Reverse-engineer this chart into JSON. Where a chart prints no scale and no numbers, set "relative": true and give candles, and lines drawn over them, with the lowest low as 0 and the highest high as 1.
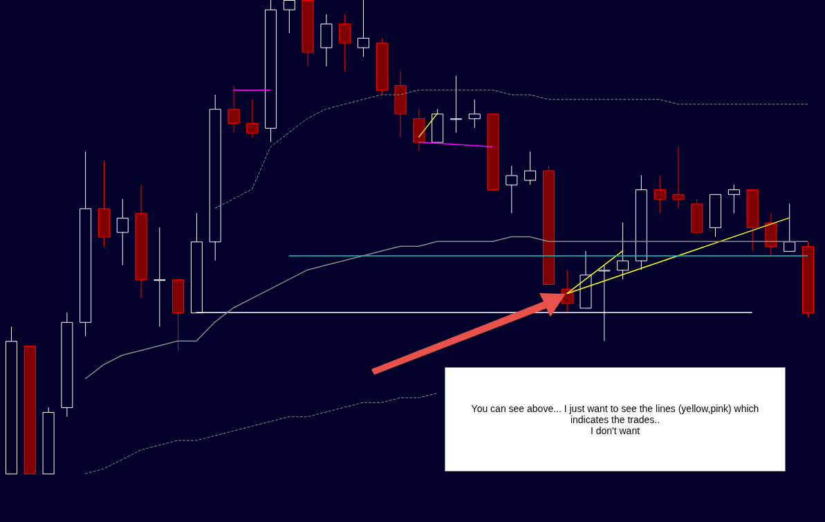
{
  "chart_data": {
    "type": "candlestick",
    "relative": true,
    "categories": [
      null,
      null,
      null,
      null,
      null,
      null,
      null,
      null,
      null,
      null,
      null,
      null,
      null,
      null,
      null,
      null,
      null,
      null,
      null,
      null,
      null,
      null,
      null,
      null,
      null,
      null,
      null,
      null,
      null,
      null,
      null,
      null,
      null,
      null,
      null,
      null,
      null,
      null,
      null,
      null,
      null,
      null,
      null,
      null
    ],
    "ohlc": [
      [
        0,
        0.31,
        0,
        0.28
      ],
      [
        0.27,
        0.27,
        0,
        0
      ],
      [
        0,
        0.14,
        0,
        0.13
      ],
      [
        0.14,
        0.34,
        0.12,
        0.32
      ],
      [
        0.32,
        0.68,
        0.29,
        0.56
      ],
      [
        0.56,
        0.66,
        0.48,
        0.5
      ],
      [
        0.51,
        0.58,
        0.44,
        0.54
      ],
      [
        0.55,
        0.61,
        0.37,
        0.41
      ],
      [
        0.41,
        0.52,
        0.31,
        0.41
      ],
      [
        0.41,
        0.41,
        0.26,
        0.34
      ],
      [
        0.34,
        0.55,
        0.34,
        0.49
      ],
      [
        0.49,
        0.8,
        0.45,
        0.77
      ],
      [
        0.77,
        0.82,
        0.72,
        0.74
      ],
      [
        0.74,
        0.79,
        0.71,
        0.72
      ],
      [
        0.73,
        1,
        0.7,
        0.98
      ],
      [
        0.98,
        1,
        0.93,
        1
      ],
      [
        1,
        1,
        0.86,
        0.89
      ],
      [
        0.9,
        0.97,
        0.86,
        0.95
      ],
      [
        0.95,
        0.97,
        0.85,
        0.91
      ],
      [
        0.9,
        1,
        0.88,
        0.92
      ],
      [
        0.91,
        0.92,
        0.8,
        0.81
      ],
      [
        0.82,
        0.85,
        0.71,
        0.76
      ],
      [
        0.75,
        0.77,
        0.68,
        0.7
      ],
      [
        0.7,
        0.77,
        0.7,
        0.76
      ],
      [
        0.75,
        0.84,
        0.72,
        0.75
      ],
      [
        0.75,
        0.79,
        0.73,
        0.76
      ],
      [
        0.76,
        0.76,
        0.6,
        0.6
      ],
      [
        0.61,
        0.65,
        0.55,
        0.63
      ],
      [
        0.62,
        0.68,
        0.61,
        0.64
      ],
      [
        0.64,
        0.65,
        0.4,
        0.4
      ],
      [
        0.39,
        0.43,
        0.34,
        0.36
      ],
      [
        0.35,
        0.47,
        0.35,
        0.42
      ],
      [
        0.43,
        0.44,
        0.28,
        0.43
      ],
      [
        0.43,
        0.53,
        0.41,
        0.45
      ],
      [
        0.45,
        0.63,
        0.43,
        0.6
      ],
      [
        0.6,
        0.63,
        0.55,
        0.58
      ],
      [
        0.59,
        0.69,
        0.56,
        0.58
      ],
      [
        0.57,
        0.58,
        0.51,
        0.51
      ],
      [
        0.52,
        0.59,
        0.5,
        0.59
      ],
      [
        0.59,
        0.61,
        0.55,
        0.6
      ],
      [
        0.6,
        0.6,
        0.47,
        0.52
      ],
      [
        0.53,
        0.55,
        0.46,
        0.48
      ],
      [
        0.47,
        0.57,
        0.47,
        0.49
      ],
      [
        0.48,
        0.49,
        0.33,
        0.34
      ]
    ],
    "series": [
      {
        "type": "line",
        "color": "#8c8c8c",
        "line_style": "dashed",
        "values": [
          null,
          null,
          null,
          null,
          null,
          null,
          null,
          null,
          null,
          null,
          null,
          0.56,
          0.58,
          0.6,
          0.69,
          0.72,
          0.75,
          0.77,
          0.78,
          0.79,
          0.8,
          0.8,
          0.81,
          0.81,
          0.81,
          0.81,
          0.81,
          0.8,
          0.8,
          0.79,
          0.79,
          0.79,
          0.79,
          0.79,
          0.79,
          0.79,
          0.78,
          0.78,
          0.78,
          0.78,
          0.78,
          0.78,
          0.78,
          0.78
        ]
      },
      {
        "type": "line",
        "color": "#8c8c8c",
        "line_style": "solid",
        "values": [
          null,
          null,
          null,
          null,
          0.2,
          0.23,
          0.25,
          0.26,
          0.27,
          0.28,
          0.28,
          0.32,
          0.35,
          0.37,
          0.39,
          0.41,
          0.43,
          0.44,
          0.45,
          0.46,
          0.47,
          0.48,
          0.48,
          0.49,
          0.49,
          0.49,
          0.49,
          0.5,
          0.5,
          0.49,
          0.49,
          0.49,
          0.49,
          0.49,
          0.49,
          0.49,
          0.49,
          0.49,
          0.49,
          0.49,
          0.49,
          0.49,
          0.49,
          0.49
        ]
      },
      {
        "type": "line",
        "color": "#8c8c8c",
        "line_style": "dashed",
        "values": [
          null,
          null,
          null,
          null,
          0,
          0.01,
          0.03,
          0.05,
          0.06,
          0.07,
          0.07,
          0.08,
          0.09,
          0.1,
          0.11,
          0.12,
          0.12,
          0.13,
          0.14,
          0.15,
          0.15,
          0.16,
          0.16,
          0.17,
          null,
          null,
          null,
          null,
          null,
          null,
          null,
          null,
          null,
          null,
          null,
          null,
          null,
          null,
          null,
          null,
          null,
          null,
          null,
          null
        ]
      },
      {
        "type": "line",
        "color": "#ffffff",
        "line_style": "solid",
        "values": [
          null,
          null,
          null,
          null,
          null,
          null,
          null,
          null,
          null,
          null,
          0.34,
          0.34,
          0.34,
          0.34,
          0.34,
          0.34,
          0.34,
          0.34,
          0.34,
          0.34,
          0.34,
          0.34,
          0.34,
          0.34,
          0.34,
          0.34,
          0.34,
          0.34,
          null,
          0.34,
          0.34,
          0.34,
          0.34,
          0.34,
          0.34,
          0.34,
          0.34,
          0.34,
          0.34,
          0.34,
          0.34,
          null,
          null,
          null
        ]
      },
      {
        "type": "line",
        "color": "#00c8c8",
        "line_style": "solid",
        "values": [
          null,
          null,
          null,
          null,
          null,
          null,
          null,
          null,
          null,
          null,
          null,
          null,
          null,
          null,
          null,
          0.46,
          0.46,
          0.46,
          0.46,
          0.46,
          0.46,
          0.46,
          0.46,
          0.46,
          0.46,
          0.46,
          0.46,
          0.46,
          0.46,
          0.46,
          0.46,
          0.46,
          0.46,
          0.46,
          0.46,
          0.46,
          0.46,
          0.46,
          0.46,
          0.46,
          0.46,
          0.46,
          0.46,
          0.46
        ]
      },
      {
        "type": "line",
        "color": "#ff00ff",
        "line_style": "solid",
        "values": [
          null,
          null,
          null,
          null,
          null,
          null,
          null,
          null,
          null,
          null,
          null,
          null,
          0.81,
          null,
          0.81,
          null,
          null,
          null,
          null,
          null,
          null,
          null,
          null,
          null,
          null,
          null,
          null,
          null,
          null,
          null,
          null,
          null,
          null,
          null,
          null,
          null,
          null,
          null,
          null,
          null,
          null,
          null,
          null,
          null
        ]
      },
      {
        "type": "line",
        "color": "#ff00ff",
        "line_style": "solid",
        "values": [
          null,
          null,
          null,
          null,
          null,
          null,
          null,
          null,
          null,
          null,
          null,
          null,
          null,
          null,
          null,
          null,
          null,
          null,
          null,
          null,
          null,
          null,
          0.7,
          null,
          null,
          null,
          0.69,
          null,
          null,
          null,
          null,
          null,
          null,
          null,
          null,
          null,
          null,
          null,
          null,
          null,
          null,
          null,
          null,
          null
        ]
      },
      {
        "type": "line",
        "color": "#ffff00",
        "line_style": "solid",
        "values": [
          null,
          null,
          null,
          null,
          null,
          null,
          null,
          null,
          null,
          null,
          null,
          null,
          null,
          null,
          null,
          null,
          null,
          null,
          null,
          null,
          null,
          null,
          0.71,
          0.76,
          null,
          null,
          null,
          null,
          null,
          null,
          null,
          null,
          null,
          null,
          null,
          null,
          null,
          null,
          null,
          null,
          null,
          null,
          null,
          null
        ]
      },
      {
        "type": "line",
        "color": "#ffff00",
        "line_style": "solid",
        "values": [
          null,
          null,
          null,
          null,
          null,
          null,
          null,
          null,
          null,
          null,
          null,
          null,
          null,
          null,
          null,
          null,
          null,
          null,
          null,
          null,
          null,
          null,
          null,
          null,
          null,
          null,
          null,
          null,
          null,
          null,
          0.38,
          null,
          null,
          0.47,
          null,
          null,
          null,
          null,
          null,
          null,
          null,
          null,
          null,
          null
        ]
      },
      {
        "type": "line",
        "color": "#ffff00",
        "line_style": "solid",
        "values": [
          null,
          null,
          null,
          null,
          null,
          null,
          null,
          null,
          null,
          null,
          null,
          null,
          null,
          null,
          null,
          null,
          null,
          null,
          null,
          null,
          null,
          null,
          null,
          null,
          null,
          null,
          null,
          null,
          null,
          null,
          0.38,
          null,
          null,
          null,
          null,
          null,
          null,
          null,
          null,
          null,
          null,
          null,
          0.54,
          null
        ]
      }
    ],
    "annotations": [
      "You can see above... I just want to see the lines (yellow,pink) which indicates the trades..\nI don't want"
    ]
  }
}
